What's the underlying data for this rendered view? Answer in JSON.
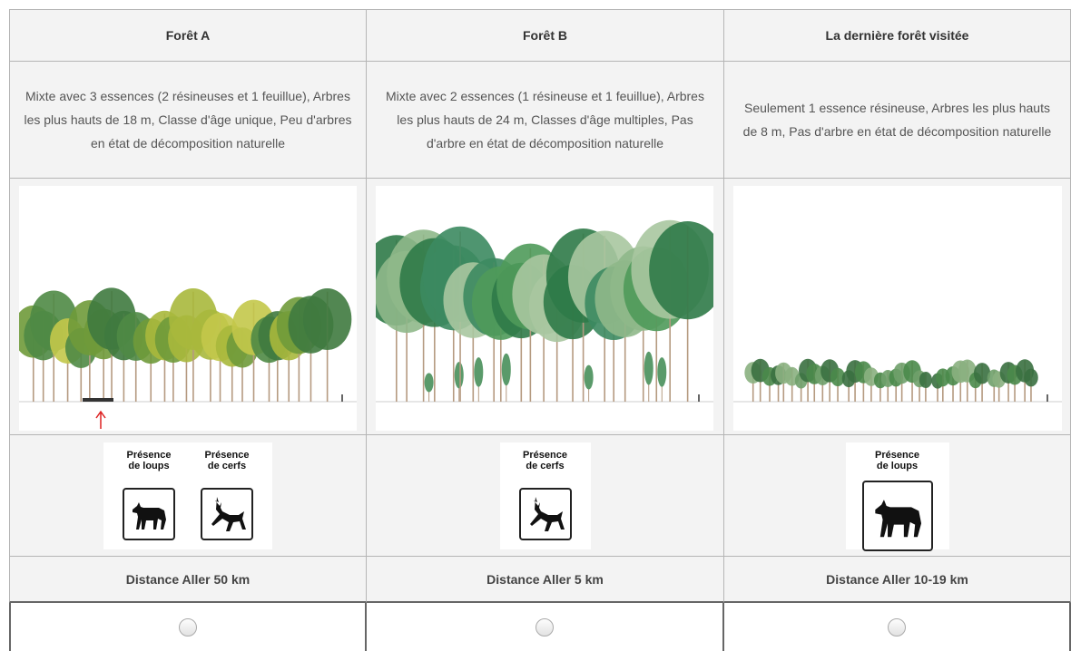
{
  "columns": [
    {
      "header": "Forêt A",
      "description": "Mixte avec 3 essences (2 résineuses et 1 feuillue), Arbres les plus hauts de 18 m, Classe d'âge unique, Peu d'arbres en état de décomposition naturelle",
      "signs": [
        "Présence de loups",
        "Présence de cerfs"
      ],
      "distance": "Distance Aller 50 km"
    },
    {
      "header": "Forêt B",
      "description": "Mixte avec 2 essences (1 résineuse et 1 feuillue), Arbres les plus hauts de 24 m, Classes d'âge multiples, Pas d'arbre en état de décomposition naturelle",
      "signs": [
        "Présence de cerfs"
      ],
      "distance": "Distance Aller 5 km"
    },
    {
      "header": "La dernière forêt visitée",
      "description": "Seulement 1 essence résineuse, Arbres les plus hauts de 8 m, Pas d'arbre en état de décomposition naturelle",
      "signs": [
        "Présence de loups"
      ],
      "distance": "Distance Aller 10-19 km"
    }
  ]
}
